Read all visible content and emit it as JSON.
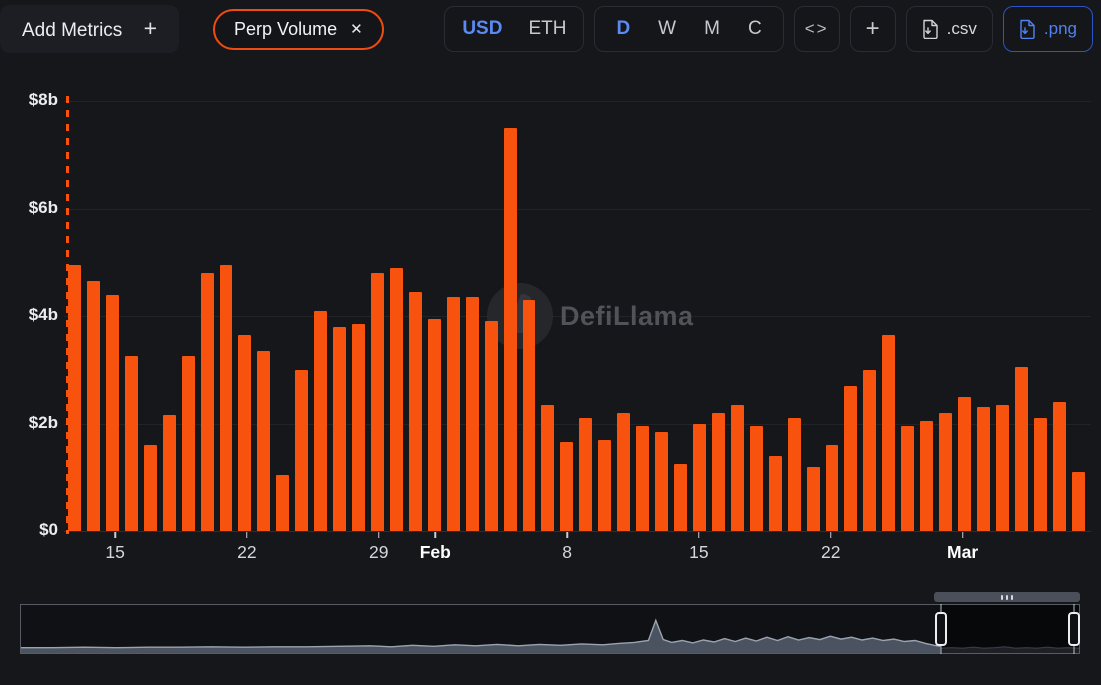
{
  "toolbar": {
    "add_metrics_label": "Add Metrics",
    "metric_pill_label": "Perp Volume",
    "currency_options": [
      "USD",
      "ETH"
    ],
    "currency_selected": "USD",
    "interval_options": [
      "D",
      "W",
      "M",
      "C"
    ],
    "interval_selected": "D",
    "embed_label": "<>",
    "add_chart_label": "+",
    "csv_label": ".csv",
    "png_label": ".png",
    "icons": {
      "plus": "+",
      "close": "✕",
      "csv": "file-download-icon",
      "png": "file-download-icon"
    }
  },
  "watermark_text": "DefiLlama",
  "chart_data": {
    "type": "bar",
    "title": "Perp Volume",
    "value_unit": "USD billions per day",
    "bar_color": "#f7530e",
    "accent_orange": "#ee4c12",
    "accent_blue": "#5b8af2",
    "ylim": [
      0,
      8
    ],
    "grid": true,
    "y_ticks": [
      {
        "label": "$0",
        "value": 0
      },
      {
        "label": "$2b",
        "value": 2
      },
      {
        "label": "$4b",
        "value": 4
      },
      {
        "label": "$6b",
        "value": 6
      },
      {
        "label": "$8b",
        "value": 8
      }
    ],
    "x_tick_marks": [
      {
        "index": 2,
        "label": "15",
        "bold": false
      },
      {
        "index": 9,
        "label": "22",
        "bold": false
      },
      {
        "index": 16,
        "label": "29",
        "bold": false
      },
      {
        "index": 19,
        "label": "Feb",
        "bold": true
      },
      {
        "index": 26,
        "label": "8",
        "bold": false
      },
      {
        "index": 33,
        "label": "15",
        "bold": false
      },
      {
        "index": 40,
        "label": "22",
        "bold": false
      },
      {
        "index": 47,
        "label": "Mar",
        "bold": true
      }
    ],
    "categories": [
      "Jan 13",
      "Jan 14",
      "Jan 15",
      "Jan 16",
      "Jan 17",
      "Jan 18",
      "Jan 19",
      "Jan 20",
      "Jan 21",
      "Jan 22",
      "Jan 23",
      "Jan 24",
      "Jan 25",
      "Jan 26",
      "Jan 27",
      "Jan 28",
      "Jan 29",
      "Jan 30",
      "Jan 31",
      "Feb 1",
      "Feb 2",
      "Feb 3",
      "Feb 4",
      "Feb 5",
      "Feb 6",
      "Feb 7",
      "Feb 8",
      "Feb 9",
      "Feb 10",
      "Feb 11",
      "Feb 12",
      "Feb 13",
      "Feb 14",
      "Feb 15",
      "Feb 16",
      "Feb 17",
      "Feb 18",
      "Feb 19",
      "Feb 20",
      "Feb 21",
      "Feb 22",
      "Feb 23",
      "Feb 24",
      "Feb 25",
      "Feb 26",
      "Feb 27",
      "Feb 28",
      "Mar 1",
      "Mar 2",
      "Mar 3",
      "Mar 4",
      "Mar 5",
      "Mar 6",
      "Mar 7"
    ],
    "values": [
      4.95,
      4.65,
      4.4,
      3.25,
      1.6,
      2.15,
      3.25,
      4.8,
      4.95,
      3.65,
      3.35,
      1.05,
      3.0,
      4.1,
      3.8,
      3.85,
      4.8,
      4.9,
      4.45,
      3.95,
      4.35,
      4.35,
      3.9,
      7.5,
      4.3,
      2.35,
      1.65,
      2.1,
      1.7,
      2.2,
      1.95,
      1.85,
      1.25,
      2.0,
      2.2,
      2.35,
      1.95,
      1.4,
      2.1,
      1.2,
      1.6,
      2.7,
      3.0,
      3.65,
      1.95,
      2.05,
      2.2,
      2.5,
      2.3,
      2.35,
      3.05,
      2.1,
      2.4,
      1.1
    ]
  },
  "navigator": {
    "selection_start_pct": 86.9,
    "selection_end_pct": 99.4,
    "outside_profile": [
      [
        0,
        11
      ],
      [
        3,
        11
      ],
      [
        6,
        12
      ],
      [
        9,
        11
      ],
      [
        12,
        12
      ],
      [
        15,
        12
      ],
      [
        18,
        13
      ],
      [
        21,
        12
      ],
      [
        24,
        13
      ],
      [
        27,
        13
      ],
      [
        30,
        14
      ],
      [
        33,
        15
      ],
      [
        35,
        13
      ],
      [
        37,
        16
      ],
      [
        39,
        14
      ],
      [
        41,
        17
      ],
      [
        43,
        15
      ],
      [
        45,
        18
      ],
      [
        47,
        15
      ],
      [
        49,
        18
      ],
      [
        51,
        16
      ],
      [
        53,
        19
      ],
      [
        55,
        17
      ],
      [
        56.5,
        20
      ],
      [
        58,
        22
      ],
      [
        59.3,
        26
      ],
      [
        60,
        68
      ],
      [
        60.7,
        28
      ],
      [
        61.5,
        22
      ],
      [
        62.5,
        26
      ],
      [
        63.5,
        21
      ],
      [
        64.5,
        27
      ],
      [
        65.5,
        23
      ],
      [
        66.5,
        30
      ],
      [
        67.5,
        24
      ],
      [
        68.5,
        31
      ],
      [
        69.5,
        25
      ],
      [
        70.5,
        33
      ],
      [
        71.5,
        26
      ],
      [
        72.5,
        34
      ],
      [
        73.5,
        27
      ],
      [
        74.5,
        32
      ],
      [
        75.5,
        28
      ],
      [
        76.5,
        35
      ],
      [
        77.5,
        29
      ],
      [
        78.5,
        33
      ],
      [
        79.5,
        27
      ],
      [
        80.5,
        31
      ],
      [
        81.5,
        26
      ],
      [
        82.5,
        29
      ],
      [
        83.5,
        24
      ],
      [
        84.5,
        26
      ],
      [
        85.5,
        20
      ],
      [
        86.3,
        16
      ],
      [
        86.9,
        14
      ]
    ],
    "inside_profile": [
      [
        86.9,
        10
      ],
      [
        88,
        11
      ],
      [
        89,
        10
      ],
      [
        90,
        12
      ],
      [
        91,
        10
      ],
      [
        92,
        11
      ],
      [
        93,
        13
      ],
      [
        94,
        10
      ],
      [
        95,
        11
      ],
      [
        96,
        10
      ],
      [
        97,
        12
      ],
      [
        98,
        10
      ],
      [
        99,
        11
      ],
      [
        100,
        10
      ]
    ]
  }
}
